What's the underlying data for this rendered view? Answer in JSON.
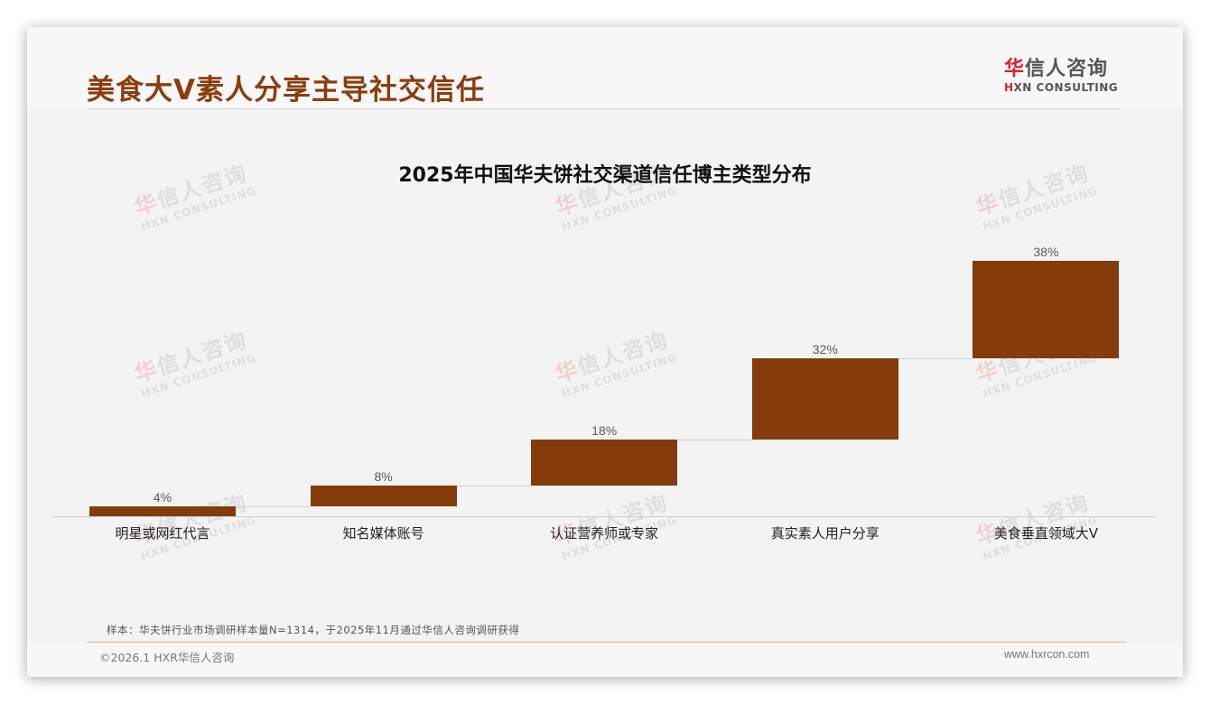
{
  "header": {
    "title": "美食大V素人分享主导社交信任",
    "logo": {
      "cn_prefix": "华",
      "cn_rest": "信人咨询",
      "en_prefix": "H",
      "en_rest": "XN CONSULTING"
    }
  },
  "watermark": {
    "cn_prefix": "华",
    "cn_rest": "信人咨询",
    "en": "HXN CONSULTING"
  },
  "colors": {
    "title": "#8b3d0e",
    "bar": "#843c0c",
    "logo_accent": "#d7222a"
  },
  "chart_data": {
    "type": "bar",
    "subtype": "waterfall",
    "title": "2025年中国华夫饼社交渠道信任博主类型分布",
    "categories": [
      "明星或网红代言",
      "知名媒体账号",
      "认证营养师或专家",
      "真实素人用户分享",
      "美食垂直领域大V"
    ],
    "values": [
      4,
      8,
      18,
      32,
      38
    ],
    "value_labels": [
      "4%",
      "8%",
      "18%",
      "32%",
      "38%"
    ],
    "cumulative_start": [
      0,
      4,
      12,
      30,
      62
    ],
    "cumulative_end": [
      4,
      12,
      30,
      62,
      100
    ],
    "unit": "%",
    "xlabel": "",
    "ylabel": "",
    "ylim": [
      0,
      100
    ],
    "grid": false,
    "legend": "none",
    "series_color": "#843c0c"
  },
  "footer": {
    "note": "样本：华夫饼行业市场调研样本量N=1314，于2025年11月通过华信人咨询调研获得",
    "copyright": "©2026.1 HXR华信人咨询",
    "website": "www.hxrcon.com"
  }
}
